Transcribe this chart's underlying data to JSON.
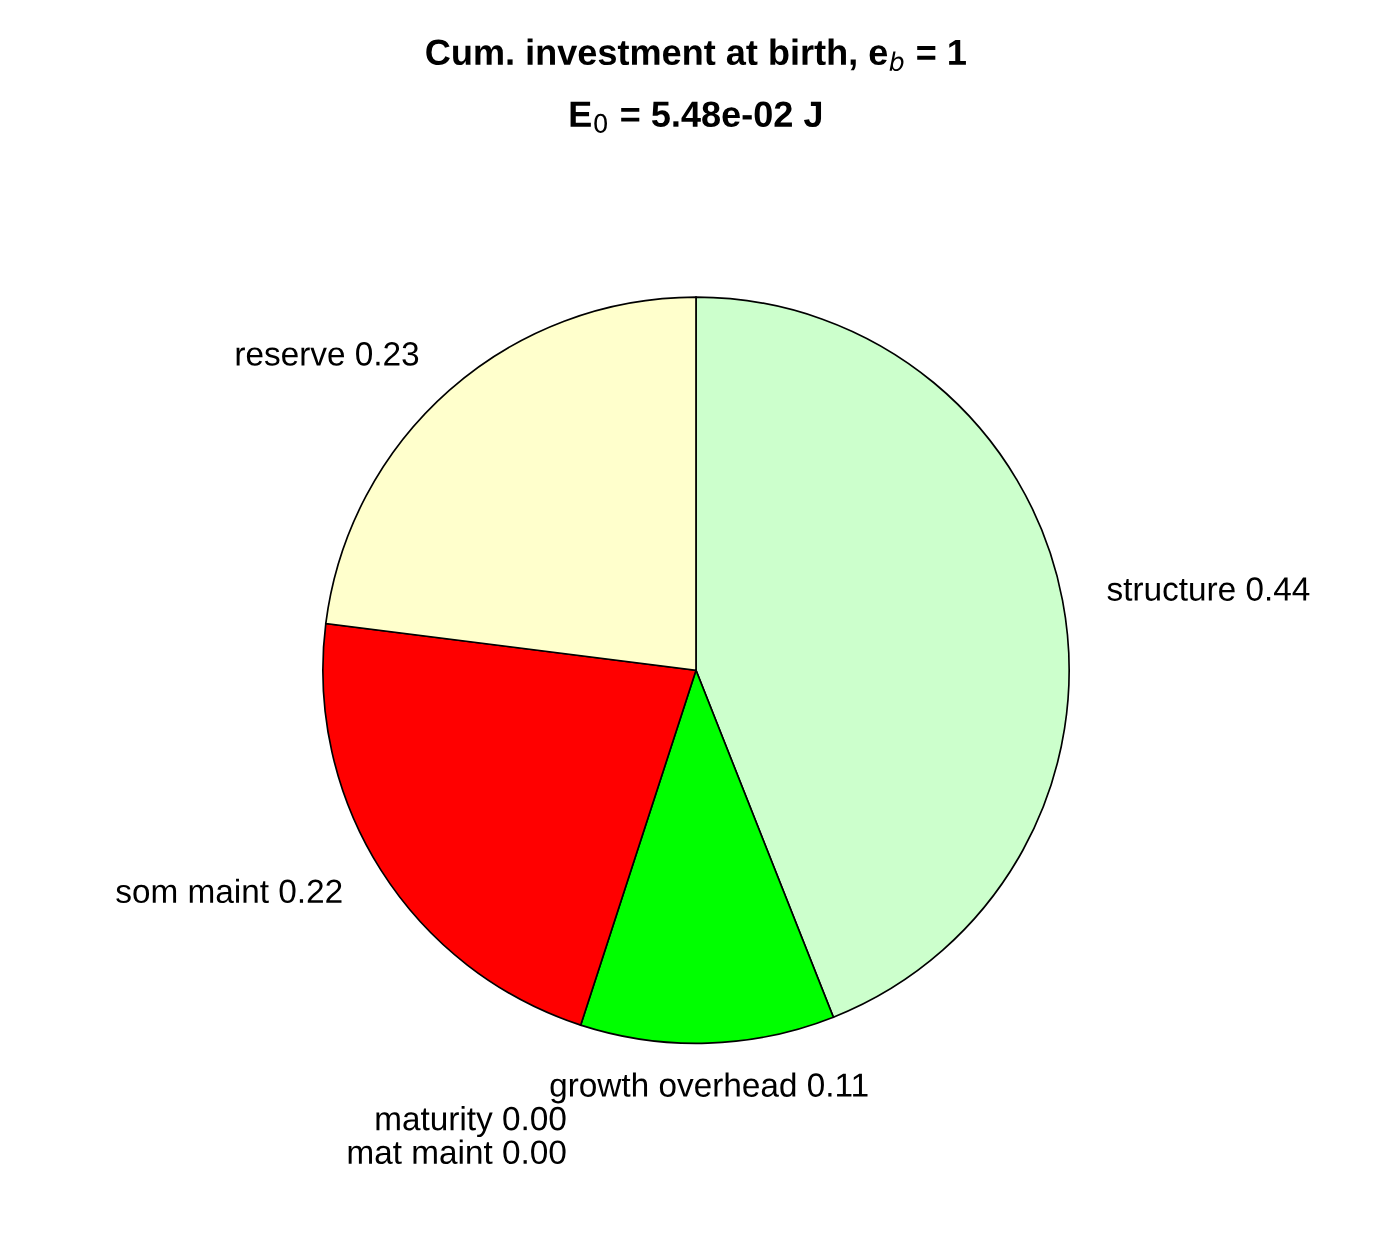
{
  "chart_data": {
    "type": "pie",
    "title": "Cum. investment at birth, e$_{b}$ = 1",
    "subtitle": "E$_{0}$ = 5.48e-02 J",
    "categories": [
      "structure",
      "growth overhead",
      "maturity",
      "mat maint",
      "som maint",
      "reserve"
    ],
    "values": [
      0.44,
      0.11,
      0.0,
      0.0,
      0.22,
      0.23
    ],
    "value_labels": [
      "0.44",
      "0.11",
      "0.00",
      "0.00",
      "0.22",
      "0.23"
    ],
    "colors": [
      "#ccffcc",
      "#00ff00",
      "#0000ff",
      "#ff00ff",
      "#ff0000",
      "#ffffcc"
    ]
  }
}
